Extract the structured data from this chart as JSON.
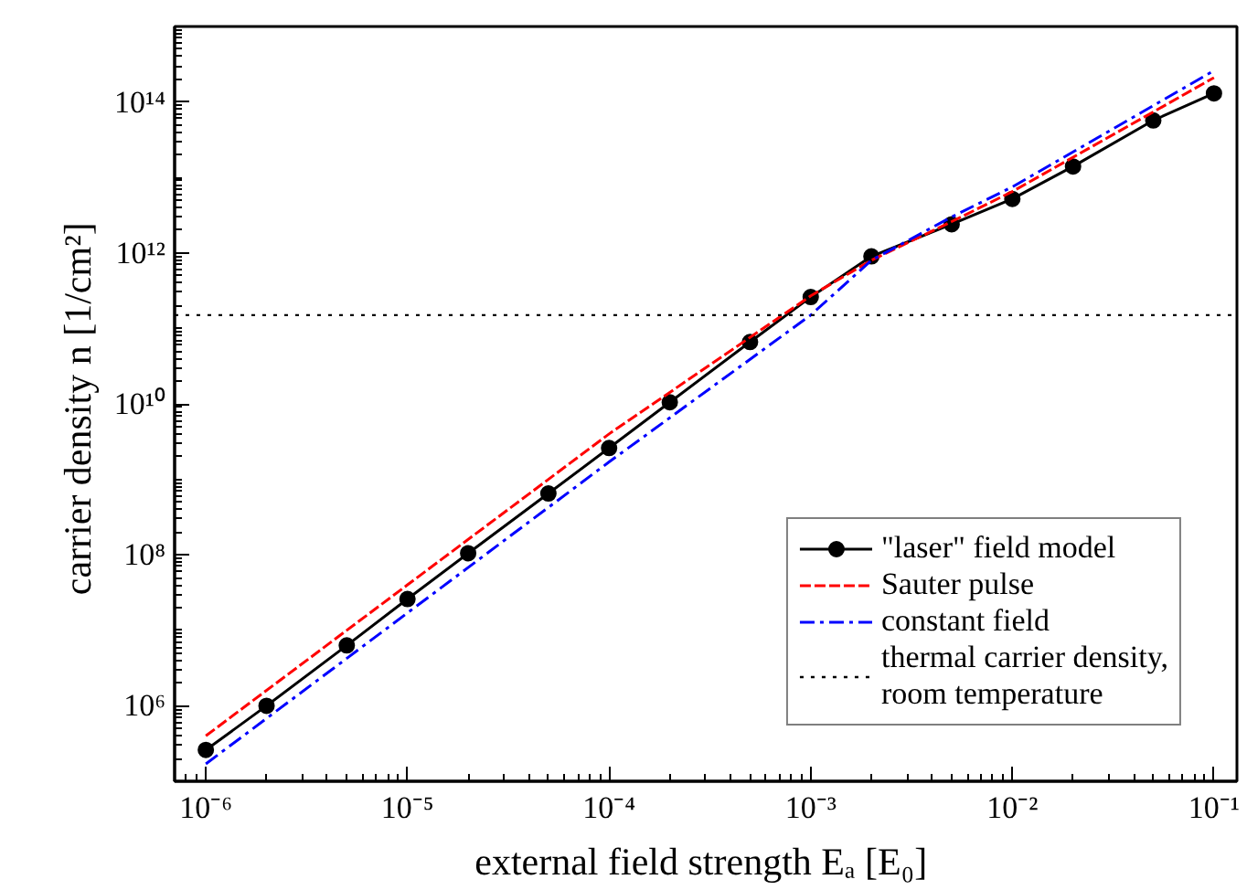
{
  "chart_data": {
    "type": "line",
    "xlabel": "external field strength  Eₐ [E₀]",
    "ylabel": "carrier density  n [1/cm²]",
    "log": "xy",
    "grid": false,
    "legend": "bottom right",
    "xlim": [
      7e-07,
      0.13
    ],
    "ylim": [
      100000.0,
      1000000000000000.0
    ],
    "xticks": [
      {
        "value": 1e-06,
        "label": "10⁻⁶"
      },
      {
        "value": 1e-05,
        "label": "10⁻⁵"
      },
      {
        "value": 0.0001,
        "label": "10⁻⁴"
      },
      {
        "value": 0.001,
        "label": "10⁻³"
      },
      {
        "value": 0.01,
        "label": "10⁻²"
      },
      {
        "value": 0.1,
        "label": "10⁻¹"
      }
    ],
    "yticks": [
      {
        "value": 1000000.0,
        "label": "10⁶"
      },
      {
        "value": 100000000.0,
        "label": "10⁸"
      },
      {
        "value": 10000000000.0,
        "label": "10¹⁰"
      },
      {
        "value": 1000000000000.0,
        "label": "10¹²"
      },
      {
        "value": 100000000000000.0,
        "label": "10¹⁴"
      }
    ],
    "series": [
      {
        "name": "\"laser\" field model",
        "color": "#000000",
        "marker": "circle",
        "line_style": "solid",
        "x": [
          1e-06,
          2e-06,
          5e-06,
          1e-05,
          2e-05,
          5e-05,
          0.0001,
          0.0002,
          0.0005,
          0.001,
          0.002,
          0.005,
          0.01,
          0.02,
          0.05,
          0.1
        ],
        "values": [
          260000.0,
          1000000.0,
          6300000.0,
          26000000.0,
          105000000.0,
          650000000.0,
          2600000000.0,
          10500000000.0,
          66000000000.0,
          260000000000.0,
          900000000000.0,
          2400000000000.0,
          5200000000000.0,
          14000000000000.0,
          57000000000000.0,
          130000000000000.0
        ]
      },
      {
        "name": "Sauter pulse",
        "color": "#ff0000",
        "marker": "none",
        "line_style": "dashed",
        "x": [
          1e-06,
          1e-05,
          0.0001,
          0.001,
          0.002,
          0.005,
          0.01,
          0.1
        ],
        "values": [
          400000.0,
          40000000.0,
          4000000000.0,
          270000000000.0,
          800000000000.0,
          2600000000000.0,
          6500000000000.0,
          210000000000000.0
        ]
      },
      {
        "name": "constant field",
        "color": "#0000ff",
        "marker": "none",
        "line_style": "dashdot",
        "x": [
          1e-06,
          1e-05,
          0.0001,
          0.001,
          0.002,
          0.005,
          0.01,
          0.1
        ],
        "values": [
          170000.0,
          17000000.0,
          1700000000.0,
          150000000000.0,
          800000000000.0,
          3000000000000.0,
          7500000000000.0,
          260000000000000.0
        ]
      }
    ],
    "ref_lines": [
      {
        "axis": "y",
        "value": 150000000000.0,
        "label": "thermal carrier density,\nroom temperature",
        "color": "#000000",
        "line_style": "dotted"
      }
    ]
  }
}
